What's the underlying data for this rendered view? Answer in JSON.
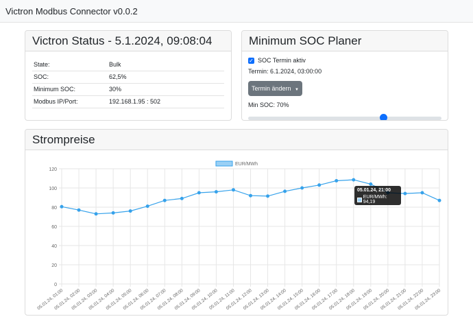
{
  "app": {
    "title": "Victron Modbus Connector v0.0.2"
  },
  "status": {
    "title": "Victron Status - 5.1.2024, 09:08:04",
    "rows": [
      {
        "label": "State:",
        "value": "Bulk"
      },
      {
        "label": "SOC:",
        "value": "62,5%"
      },
      {
        "label": "Minimum SOC:",
        "value": "30%"
      },
      {
        "label": "Modbus IP/Port:",
        "value": "192.168.1.95 : 502"
      }
    ]
  },
  "planer": {
    "title": "Minimum SOC Planer",
    "checkbox_label": "SOC Termin aktiv",
    "checkbox_checked": true,
    "termin_text": "Termin: 6.1.2024, 03:00:00",
    "button_label": "Termin ändern",
    "min_soc_text": "Min SOC: 70%",
    "slider_value": 70
  },
  "preise": {
    "title": "Strompreise",
    "tooltip": {
      "title": "05.01.24, 21:00",
      "label": "EUR/MWh: 94,19"
    }
  },
  "colors": {
    "line": "#36a2eb",
    "fill": "#9ad0f5",
    "accent": "#0d6efd",
    "button": "#6c757d"
  },
  "chart_data": {
    "type": "line",
    "legend": "EUR/MWh",
    "legend_position": "top",
    "x": [
      "05.01.24, 01:00",
      "05.01.24, 02:00",
      "05.01.24, 03:00",
      "05.01.24, 04:00",
      "05.01.24, 05:00",
      "05.01.24, 06:00",
      "05.01.24, 07:00",
      "05.01.24, 08:00",
      "05.01.24, 09:00",
      "05.01.24, 10:00",
      "05.01.24, 11:00",
      "05.01.24, 12:00",
      "05.01.24, 13:00",
      "05.01.24, 14:00",
      "05.01.24, 15:00",
      "05.01.24, 16:00",
      "05.01.24, 17:00",
      "05.01.24, 18:00",
      "05.01.24, 19:00",
      "05.01.24, 20:00",
      "05.01.24, 21:00",
      "05.01.24, 22:00",
      "05.01.24, 23:00"
    ],
    "series": [
      {
        "name": "EUR/MWh",
        "values": [
          80.5,
          77,
          73,
          74,
          76,
          81,
          87,
          89,
          95,
          96,
          98,
          92,
          91.5,
          96.5,
          100,
          103,
          107.5,
          108.5,
          104,
          95,
          94.19,
          95,
          87
        ]
      }
    ],
    "yticks": [
      0,
      20,
      40,
      60,
      80,
      100,
      120
    ],
    "ylim": [
      0,
      120
    ],
    "grid": true
  }
}
